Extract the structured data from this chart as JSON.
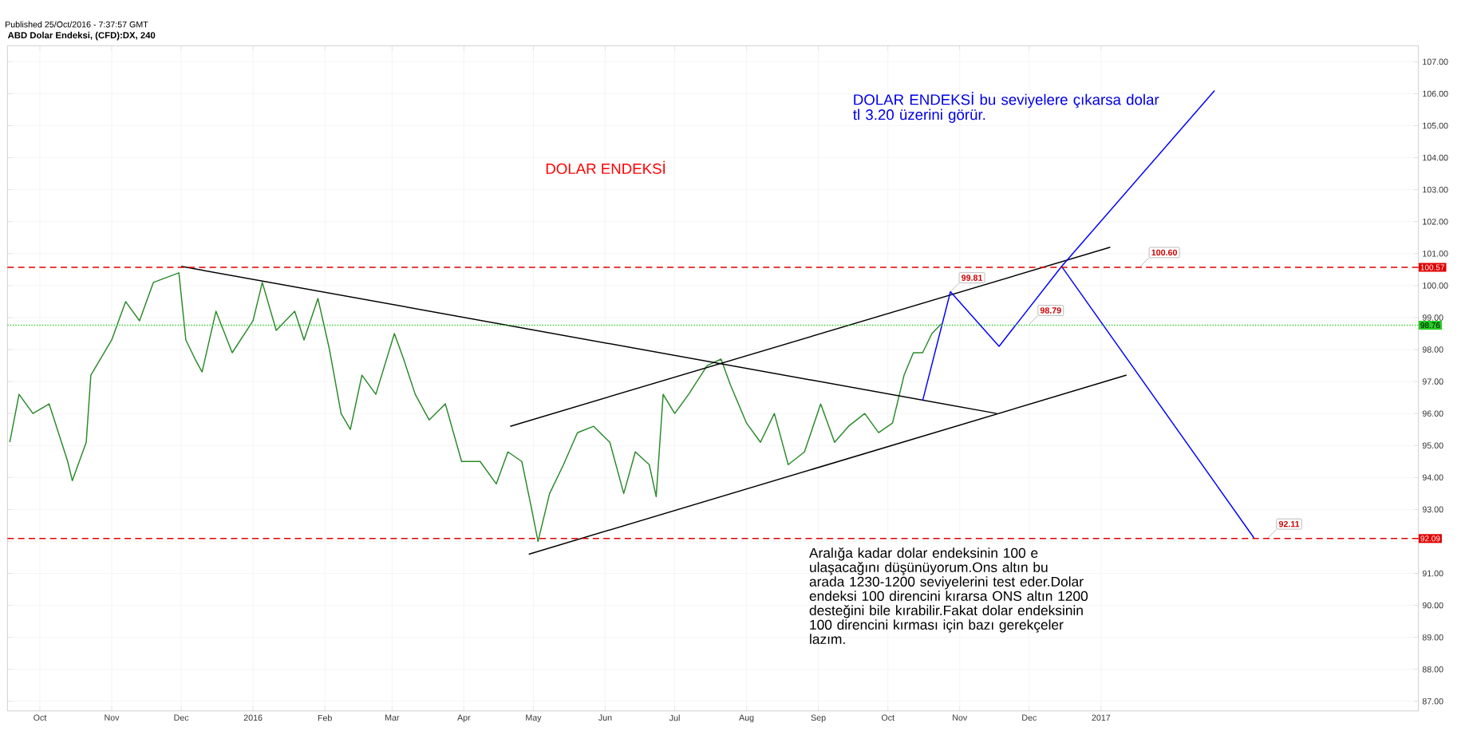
{
  "chart_data": {
    "type": "line",
    "title": "ABD Dolar Endeksi, (CFD):DX, 240",
    "annotations": [
      "Published 25/Oct/2016 - 7:37:57 GMT",
      "DOLAR ENDEKSİ",
      "DOLAR ENDEKSİ bu seviyelere çıkarsa dolar tl 3.20 üzerini görür.",
      "Aralığa kadar dolar endeksinin 100 e ulaşacağını düşünüyorum.Ons altın bu arada 1230-1200 seviyelerini test eder.Dolar endeksi 100 direncini kırarsa ONS altın 1200 desteğini bile kırabilir.Fakat dolar endeksinin 100 direncini kırması için bazı gerekçeler lazım.",
      {
        "text": "99.81",
        "x": "2016-10-28",
        "y": 99.81
      },
      {
        "text": "98.79",
        "x": "2016-12-01",
        "y": 98.79
      },
      {
        "text": "100.60",
        "x": "2017-01-18",
        "y": 100.6
      },
      {
        "text": "92.11",
        "x": "2017-03-14",
        "y": 92.11
      }
    ],
    "xlim": [
      "2015-09-17",
      "2017-05-18"
    ],
    "ylim": [
      86.7,
      107.5
    ],
    "xticks": [
      {
        "value": "2015-10-01",
        "label": "Oct"
      },
      {
        "value": "2015-11-01",
        "label": "Nov"
      },
      {
        "value": "2015-12-01",
        "label": "Dec"
      },
      {
        "value": "2016-01-01",
        "label": "2016"
      },
      {
        "value": "2016-02-01",
        "label": "Feb"
      },
      {
        "value": "2016-03-01",
        "label": "Mar"
      },
      {
        "value": "2016-04-01",
        "label": "Apr"
      },
      {
        "value": "2016-05-01",
        "label": "May"
      },
      {
        "value": "2016-06-01",
        "label": "Jun"
      },
      {
        "value": "2016-07-01",
        "label": "Jul"
      },
      {
        "value": "2016-08-01",
        "label": "Aug"
      },
      {
        "value": "2016-09-01",
        "label": "Sep"
      },
      {
        "value": "2016-10-01",
        "label": "Oct"
      },
      {
        "value": "2016-11-01",
        "label": "Nov"
      },
      {
        "value": "2016-12-01",
        "label": "Dec"
      },
      {
        "value": "2017-01-01",
        "label": "2017"
      }
    ],
    "yticks": [
      {
        "value": 87,
        "label": "87.00"
      },
      {
        "value": 88,
        "label": "88.00"
      },
      {
        "value": 89,
        "label": "89.00"
      },
      {
        "value": 90,
        "label": "90.00"
      },
      {
        "value": 91,
        "label": "91.00"
      },
      {
        "value": 92,
        "label": null
      },
      {
        "value": 93,
        "label": "93.00"
      },
      {
        "value": 94,
        "label": "94.00"
      },
      {
        "value": 95,
        "label": "95.00"
      },
      {
        "value": 96,
        "label": "96.00"
      },
      {
        "value": 97,
        "label": "97.00"
      },
      {
        "value": 98,
        "label": "98.00"
      },
      {
        "value": 99,
        "label": "99.00"
      },
      {
        "value": 100,
        "label": "100.00"
      },
      {
        "value": 101,
        "label": "101.00"
      },
      {
        "value": 102,
        "label": "102.00"
      },
      {
        "value": 103,
        "label": "103.00"
      },
      {
        "value": 104,
        "label": "104.00"
      },
      {
        "value": 105,
        "label": "105.00"
      },
      {
        "value": 106,
        "label": "106.00"
      },
      {
        "value": 107,
        "label": "107.00"
      }
    ],
    "grid": true,
    "ref_lines": [
      {
        "axis": "y",
        "value": 100.57,
        "label": "100.57",
        "color": "#e00000",
        "line_style": "dashed"
      },
      {
        "axis": "y",
        "value": 92.09,
        "label": "92.09",
        "color": "#e00000",
        "line_style": "dashed"
      },
      {
        "axis": "y",
        "value": 98.76,
        "label": "98.76",
        "color": "#22cc22",
        "line_style": "dotted"
      }
    ],
    "series": [
      {
        "color": "#2a8a2a",
        "x": [
          "2015-09-18",
          "2015-09-22",
          "2015-09-28",
          "2015-10-05",
          "2015-10-13",
          "2015-10-15",
          "2015-10-21",
          "2015-10-23",
          "2015-11-01",
          "2015-11-07",
          "2015-11-13",
          "2015-11-19",
          "2015-11-30",
          "2015-12-03",
          "2015-12-07",
          "2015-12-10",
          "2015-12-16",
          "2015-12-23",
          "2016-01-01",
          "2016-01-05",
          "2016-01-11",
          "2016-01-19",
          "2016-01-23",
          "2016-01-29",
          "2016-02-03",
          "2016-02-08",
          "2016-02-12",
          "2016-02-17",
          "2016-02-23",
          "2016-03-02",
          "2016-03-06",
          "2016-03-11",
          "2016-03-17",
          "2016-03-24",
          "2016-03-31",
          "2016-04-08",
          "2016-04-15",
          "2016-04-20",
          "2016-04-26",
          "2016-04-30",
          "2016-05-03",
          "2016-05-08",
          "2016-05-14",
          "2016-05-20",
          "2016-05-27",
          "2016-06-03",
          "2016-06-09",
          "2016-06-14",
          "2016-06-20",
          "2016-06-23",
          "2016-06-26",
          "2016-07-01",
          "2016-07-07",
          "2016-07-15",
          "2016-07-21",
          "2016-07-25",
          "2016-08-01",
          "2016-08-07",
          "2016-08-13",
          "2016-08-19",
          "2016-08-26",
          "2016-09-02",
          "2016-09-08",
          "2016-09-14",
          "2016-09-21",
          "2016-09-27",
          "2016-10-03",
          "2016-10-08",
          "2016-10-12",
          "2016-10-16",
          "2016-10-20",
          "2016-10-24"
        ],
        "values": [
          95.1,
          96.6,
          96.0,
          96.3,
          94.5,
          93.9,
          95.1,
          97.2,
          98.3,
          99.5,
          98.9,
          100.1,
          100.4,
          98.3,
          97.7,
          97.3,
          99.2,
          97.9,
          98.9,
          100.1,
          98.6,
          99.2,
          98.3,
          99.6,
          98.0,
          96.0,
          95.5,
          97.2,
          96.6,
          98.5,
          97.7,
          96.6,
          95.8,
          96.3,
          94.5,
          94.5,
          93.8,
          94.8,
          94.5,
          93.1,
          92.0,
          93.5,
          94.4,
          95.4,
          95.6,
          95.1,
          93.5,
          94.8,
          94.4,
          93.4,
          96.6,
          96.0,
          96.6,
          97.5,
          97.7,
          96.9,
          95.7,
          95.1,
          96.0,
          94.4,
          94.8,
          96.3,
          95.1,
          95.6,
          96.0,
          95.4,
          95.7,
          97.2,
          97.9,
          97.9,
          98.5,
          98.8
        ]
      },
      {
        "color": "#000000",
        "x": [
          "2015-12-01",
          "2016-11-17"
        ],
        "values": [
          100.6,
          96.0
        ]
      },
      {
        "color": "#000000",
        "x": [
          "2016-04-21",
          "2017-01-05"
        ],
        "values": [
          95.6,
          101.2
        ]
      },
      {
        "color": "#000000",
        "x": [
          "2016-04-29",
          "2017-01-12"
        ],
        "values": [
          91.6,
          97.2
        ]
      },
      {
        "color": "#0000ff",
        "x": [
          "2016-10-16",
          "2016-10-28",
          "2016-11-18",
          "2016-12-15",
          "2017-03-08"
        ],
        "values": [
          96.4,
          99.81,
          98.1,
          100.6,
          92.11
        ]
      },
      {
        "color": "#0000ff",
        "x": [
          "2016-12-15",
          "2017-02-19"
        ],
        "values": [
          100.6,
          106.1
        ]
      }
    ]
  }
}
